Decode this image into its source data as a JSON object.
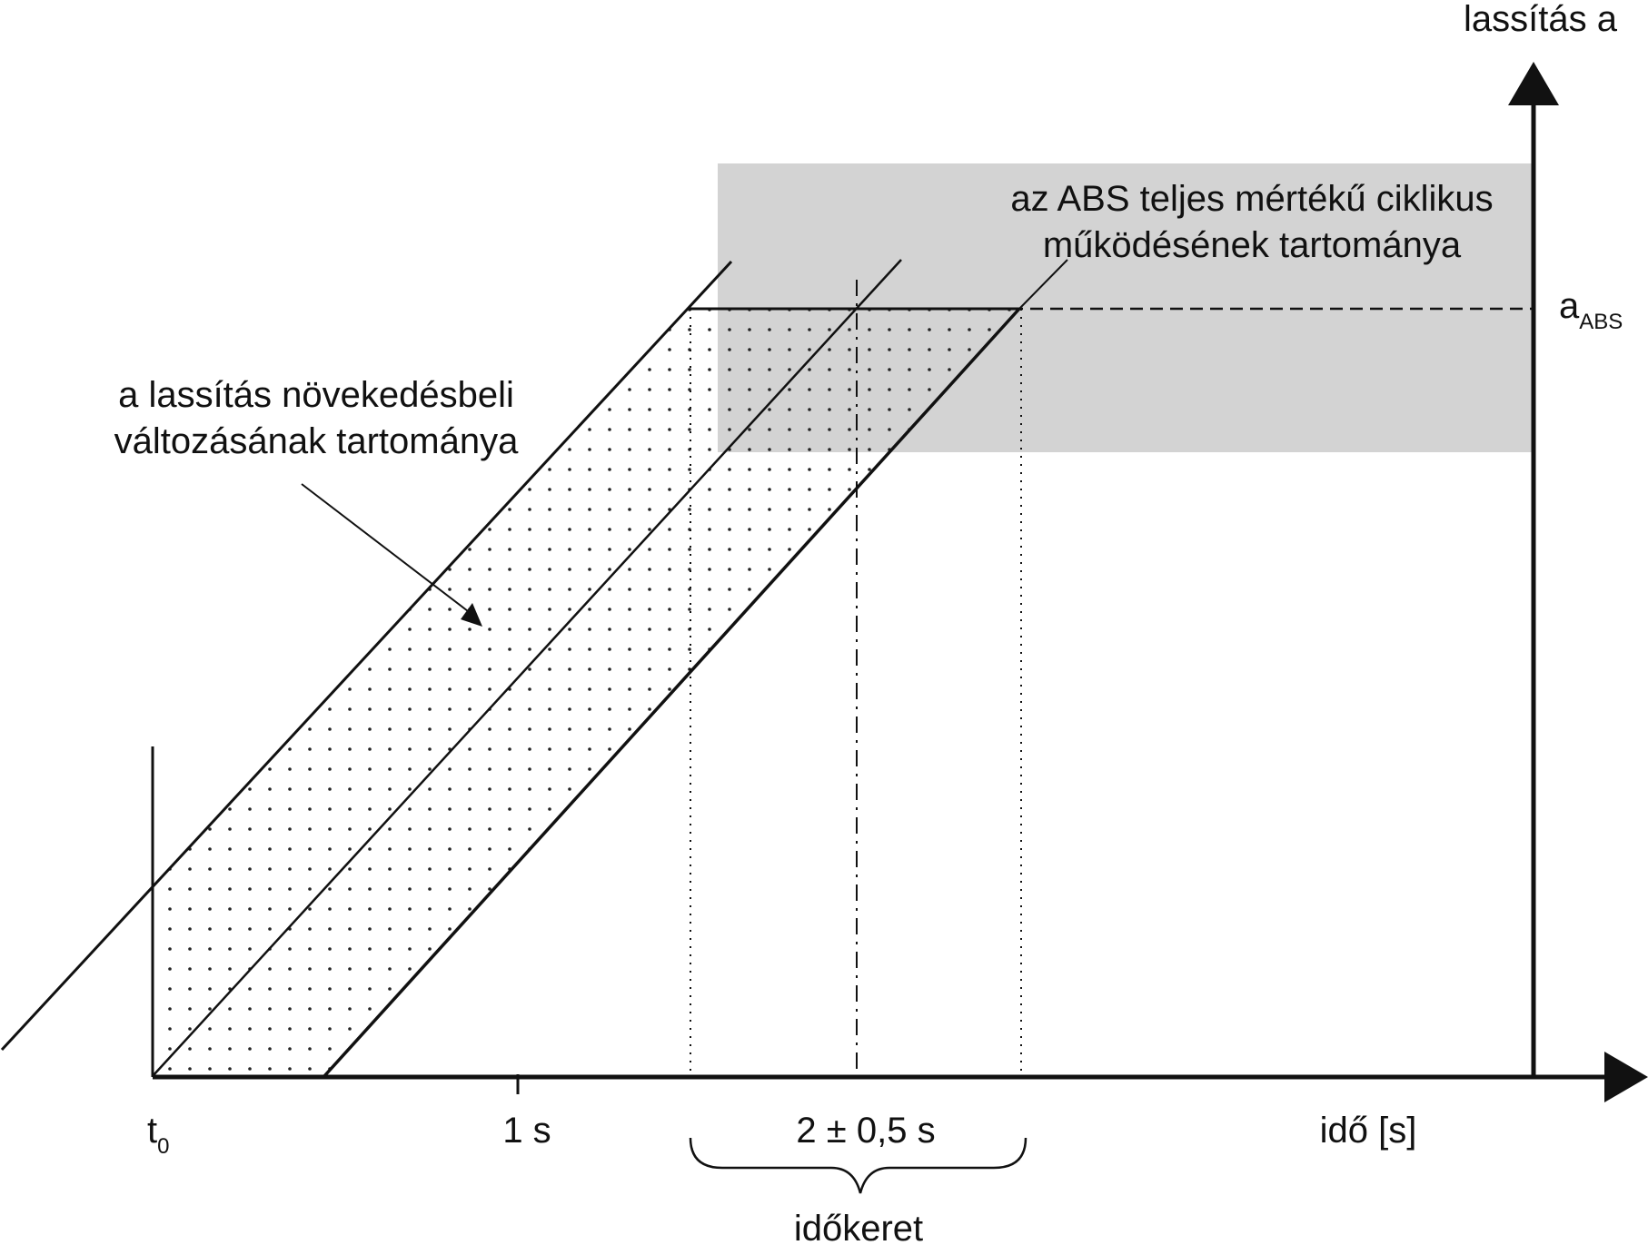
{
  "labels": {
    "y_axis": "lassítás a",
    "x_axis": "idő [s]",
    "a_abs_main": "a",
    "a_abs_sub": "ABS",
    "t0_main": "t",
    "t0_sub": "0",
    "tick_1s": "1 s",
    "time_window": "2 ± 0,5 s",
    "idokeret": "időkeret",
    "abs_region_line1": "az ABS teljes mértékű ciklikus",
    "abs_region_line2": "működésének tartománya",
    "growth_region_line1": "a lassítás növekedésbeli",
    "growth_region_line2": "változásának tartománya"
  },
  "colors": {
    "abs_region_fill": "#d3d3d3",
    "line": "#111111",
    "dot": "#222222"
  }
}
